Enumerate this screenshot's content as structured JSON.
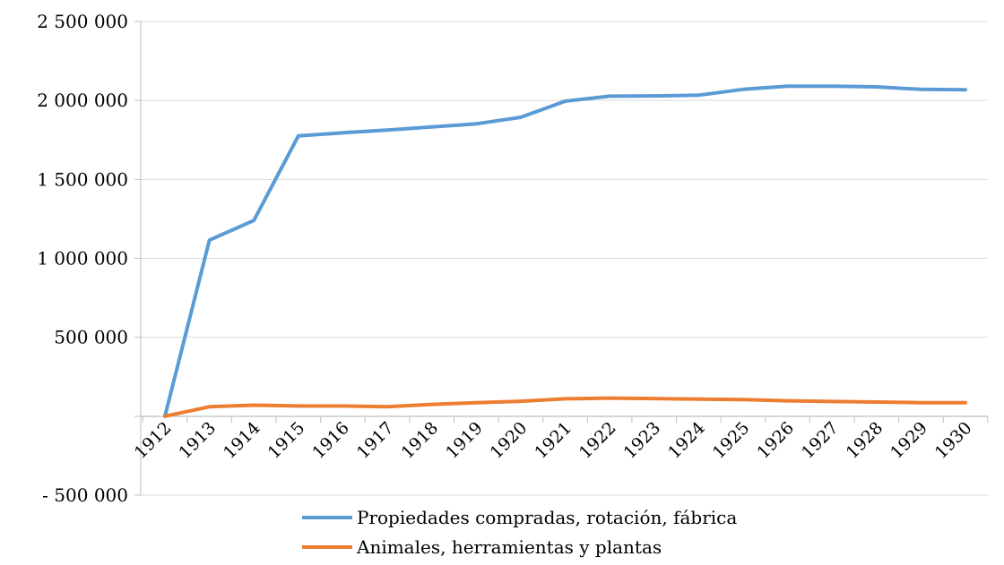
{
  "chart_data": {
    "type": "line",
    "title": "",
    "xlabel": "",
    "ylabel": "",
    "categories": [
      "1912",
      "1913",
      "1914",
      "1915",
      "1916",
      "1917",
      "1918",
      "1919",
      "1920",
      "1921",
      "1922",
      "1923",
      "1924",
      "1925",
      "1926",
      "1927",
      "1928",
      "1929",
      "1930"
    ],
    "ylim": [
      -500000,
      2500000
    ],
    "yticks": [
      {
        "value": 2500000,
        "label": "2 500 000"
      },
      {
        "value": 2000000,
        "label": "2 000 000"
      },
      {
        "value": 1500000,
        "label": "1 500 000"
      },
      {
        "value": 1000000,
        "label": "1 000 000"
      },
      {
        "value": 500000,
        "label": "500 000"
      },
      {
        "value": -500000,
        "label": "- 500 000"
      }
    ],
    "grid": true,
    "legend_position": "bottom",
    "series": [
      {
        "name": "Propiedades compradas, rotación, fábrica",
        "color": "#5B9BD5",
        "values": [
          0,
          1115000,
          1240000,
          1775000,
          1795000,
          1812000,
          1832000,
          1852000,
          1893000,
          1995000,
          2027000,
          2029000,
          2033000,
          2070000,
          2090000,
          2090000,
          2086000,
          2070000,
          2068000
        ]
      },
      {
        "name": "Animales, herramientas y plantas",
        "color": "#ED7D31",
        "values": [
          0,
          60000,
          70000,
          65000,
          65000,
          60000,
          75000,
          85000,
          95000,
          110000,
          115000,
          112000,
          108000,
          105000,
          98000,
          93000,
          90000,
          86000,
          85000
        ]
      }
    ]
  }
}
